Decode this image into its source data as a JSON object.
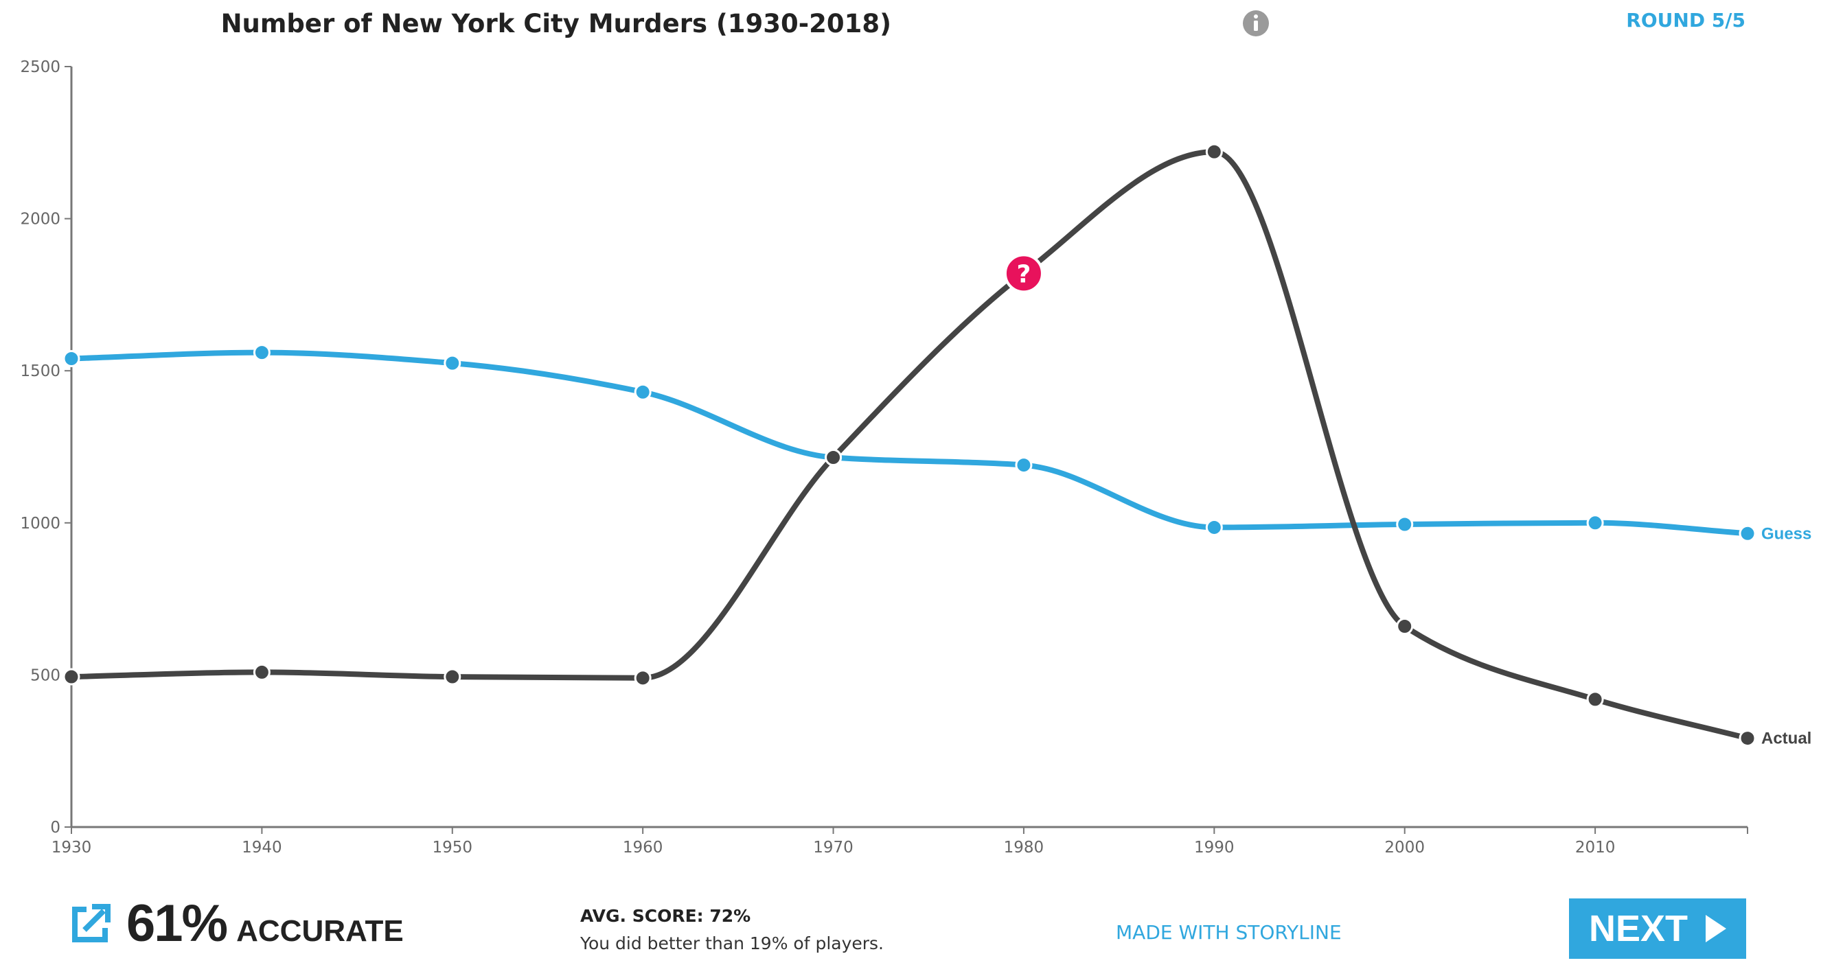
{
  "header": {
    "title": "Number of New York City Murders (1930-2018)",
    "info_icon": "info-icon",
    "round_label": "ROUND 5/5"
  },
  "chart_data": {
    "type": "line",
    "title": "Number of New York City Murders (1930-2018)",
    "xlabel": "",
    "ylabel": "",
    "xlim": [
      1930,
      2018
    ],
    "ylim": [
      0,
      2500
    ],
    "x_ticks": [
      "1930",
      "1940",
      "1950",
      "1960",
      "1970",
      "1980",
      "1990",
      "2000",
      "2010"
    ],
    "y_ticks": [
      "0",
      "500",
      "1000",
      "1500",
      "2000",
      "2500"
    ],
    "grid": false,
    "legend": "end-of-line labels",
    "series": [
      {
        "name": "Guess",
        "color": "#30a7de",
        "x": [
          1930,
          1940,
          1950,
          1960,
          1970,
          1980,
          1990,
          2000,
          2010,
          2018
        ],
        "values": [
          1540,
          1560,
          1525,
          1430,
          1215,
          1190,
          985,
          995,
          1000,
          965
        ]
      },
      {
        "name": "Actual",
        "color": "#444444",
        "x": [
          1930,
          1940,
          1950,
          1960,
          1970,
          1980,
          1990,
          2000,
          2010,
          2018
        ],
        "values": [
          494,
          509,
          494,
          490,
          1215,
          1820,
          2220,
          660,
          420,
          292
        ]
      }
    ],
    "annotation": {
      "icon": "question-mark-icon",
      "glyph": "?",
      "color": "#e8125c",
      "x": 1980,
      "y": 1820
    }
  },
  "footer": {
    "share_icon": "share-icon",
    "accuracy_value": "61%",
    "accuracy_label": "ACCURATE",
    "avg_score": "AVG. SCORE: 72%",
    "better_than": "You did better than 19% of players.",
    "made_with": "MADE WITH STORYLINE",
    "next_label": "NEXT",
    "next_icon": "play-arrow-icon"
  }
}
